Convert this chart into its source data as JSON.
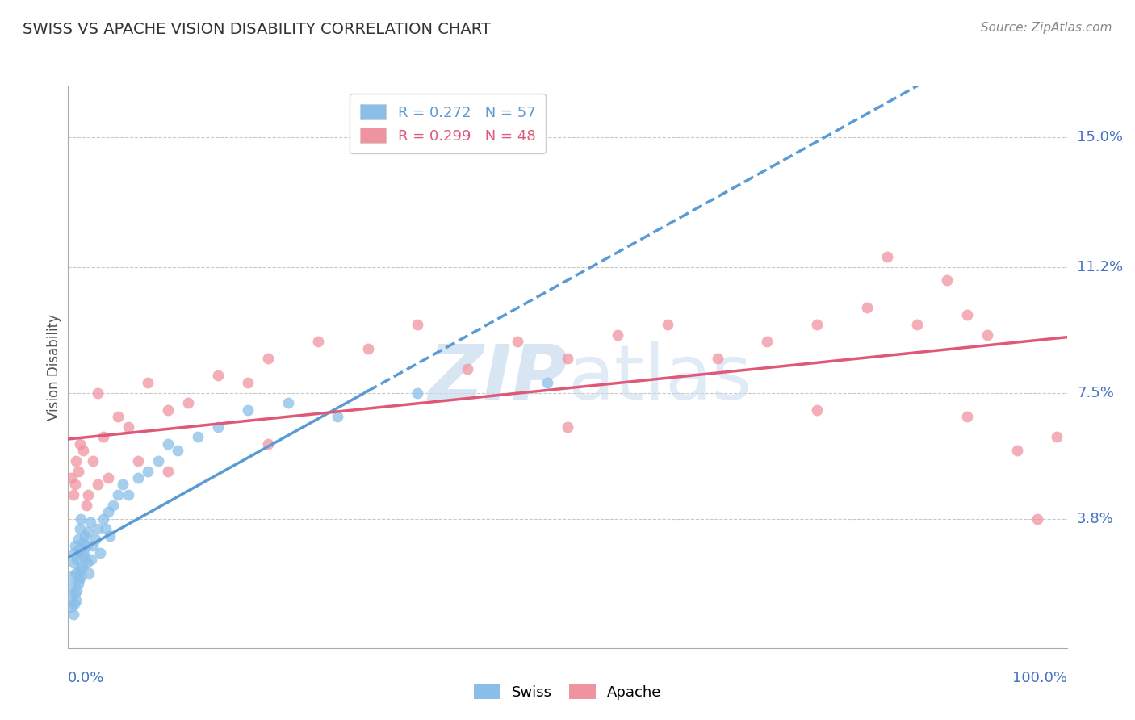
{
  "title": "SWISS VS APACHE VISION DISABILITY CORRELATION CHART",
  "source": "Source: ZipAtlas.com",
  "ylabel": "Vision Disability",
  "ytick_values": [
    3.8,
    7.5,
    11.2,
    15.0
  ],
  "ytick_labels": [
    "3.8%",
    "7.5%",
    "11.2%",
    "15.0%"
  ],
  "xlim": [
    0.0,
    100.0
  ],
  "ylim": [
    0.0,
    16.5
  ],
  "swiss_R": 0.272,
  "swiss_N": 57,
  "apache_R": 0.299,
  "apache_N": 48,
  "title_color": "#333333",
  "source_color": "#888888",
  "swiss_color": "#89BEE8",
  "apache_color": "#F093A0",
  "swiss_line_color": "#5B9BD5",
  "apache_line_color": "#E05878",
  "axis_label_color": "#4472C4",
  "watermark_color": "#C8DCF0",
  "background_color": "#FFFFFF",
  "grid_color": "#BBBBBB",
  "swiss_x": [
    0.2,
    0.3,
    0.4,
    0.4,
    0.5,
    0.5,
    0.6,
    0.6,
    0.7,
    0.7,
    0.8,
    0.8,
    0.9,
    0.9,
    1.0,
    1.0,
    1.1,
    1.1,
    1.2,
    1.2,
    1.3,
    1.3,
    1.4,
    1.5,
    1.5,
    1.6,
    1.7,
    1.8,
    1.9,
    2.0,
    2.1,
    2.2,
    2.3,
    2.5,
    2.7,
    3.0,
    3.2,
    3.5,
    3.8,
    4.0,
    4.2,
    4.5,
    5.0,
    5.5,
    6.0,
    7.0,
    8.0,
    9.0,
    10.0,
    11.0,
    13.0,
    15.0,
    18.0,
    22.0,
    27.0,
    35.0,
    48.0
  ],
  "swiss_y": [
    1.5,
    1.2,
    1.8,
    2.1,
    1.0,
    2.5,
    1.3,
    2.8,
    1.6,
    3.0,
    1.4,
    2.2,
    1.7,
    2.6,
    1.9,
    3.2,
    2.0,
    2.9,
    2.3,
    3.5,
    2.1,
    3.8,
    2.4,
    2.7,
    3.1,
    2.8,
    3.3,
    3.0,
    2.5,
    3.4,
    2.2,
    3.7,
    2.6,
    3.0,
    3.2,
    3.5,
    2.8,
    3.8,
    3.5,
    4.0,
    3.3,
    4.2,
    4.5,
    4.8,
    4.5,
    5.0,
    5.2,
    5.5,
    6.0,
    5.8,
    6.2,
    6.5,
    7.0,
    7.2,
    6.8,
    7.5,
    7.8
  ],
  "apache_x": [
    0.3,
    0.5,
    0.7,
    0.8,
    1.0,
    1.2,
    1.5,
    1.8,
    2.0,
    2.5,
    3.0,
    3.5,
    4.0,
    5.0,
    6.0,
    7.0,
    8.0,
    10.0,
    12.0,
    15.0,
    18.0,
    20.0,
    25.0,
    30.0,
    35.0,
    40.0,
    45.0,
    50.0,
    55.0,
    60.0,
    65.0,
    70.0,
    75.0,
    80.0,
    82.0,
    85.0,
    88.0,
    90.0,
    92.0,
    95.0,
    97.0,
    99.0,
    3.0,
    10.0,
    20.0,
    50.0,
    75.0,
    90.0
  ],
  "apache_y": [
    5.0,
    4.5,
    4.8,
    5.5,
    5.2,
    6.0,
    5.8,
    4.2,
    4.5,
    5.5,
    7.5,
    6.2,
    5.0,
    6.8,
    6.5,
    5.5,
    7.8,
    7.0,
    7.2,
    8.0,
    7.8,
    8.5,
    9.0,
    8.8,
    9.5,
    8.2,
    9.0,
    8.5,
    9.2,
    9.5,
    8.5,
    9.0,
    9.5,
    10.0,
    11.5,
    9.5,
    10.8,
    9.8,
    9.2,
    5.8,
    3.8,
    6.2,
    4.8,
    5.2,
    6.0,
    6.5,
    7.0,
    6.8
  ]
}
